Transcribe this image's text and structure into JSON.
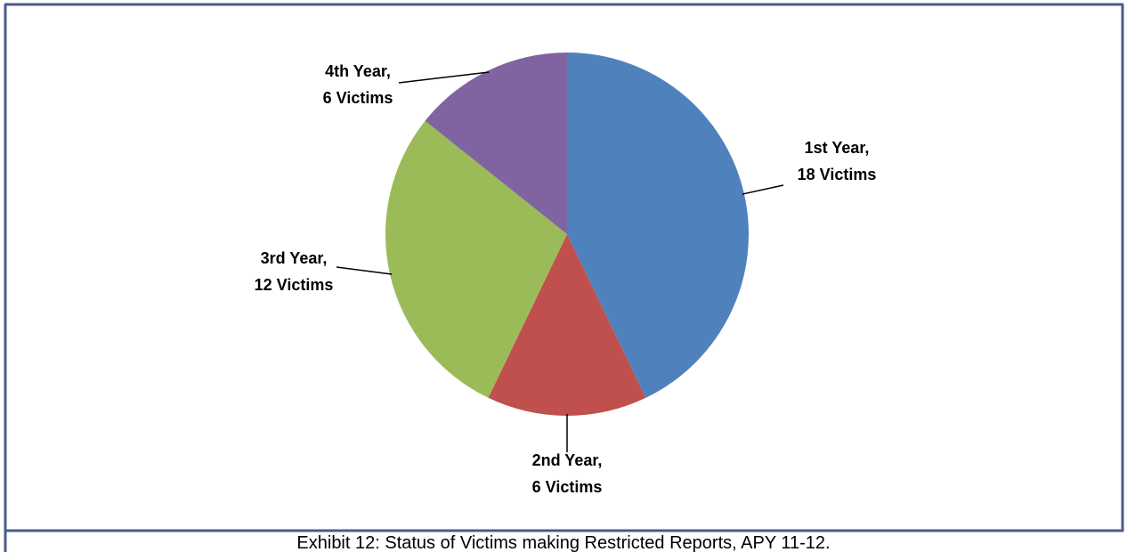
{
  "chart_data": {
    "type": "pie",
    "categories": [
      "1st Year,",
      "2nd Year,",
      "3rd Year,",
      "4th Year,"
    ],
    "values": [
      18,
      6,
      12,
      6
    ],
    "value_labels": [
      "18 Victims",
      "6 Victims",
      "12 Victims",
      "6 Victims"
    ],
    "colors": [
      "#4f81bd",
      "#c0504d",
      "#9bbb59",
      "#8064a2"
    ],
    "caption": "Exhibit 12:  Status of Victims making Restricted Reports, APY 11-12."
  }
}
